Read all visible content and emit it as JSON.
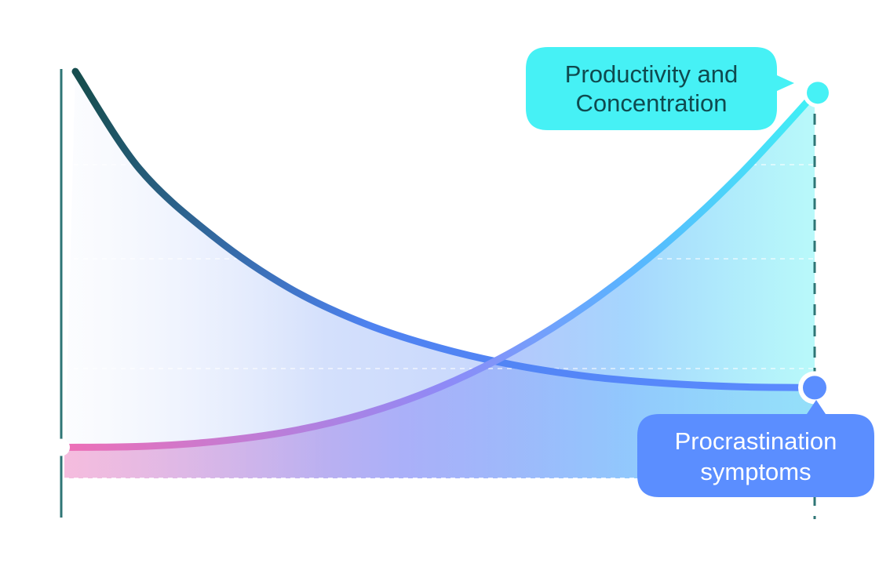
{
  "chart_data": {
    "type": "line",
    "title": "",
    "xlabel": "",
    "ylabel": "",
    "xlim": [
      0,
      100
    ],
    "ylim": [
      0,
      100
    ],
    "grid": "horizontal dashed",
    "series": [
      {
        "name": "Productivity and Concentration",
        "label_lines": [
          "Productivity and",
          "Concentration"
        ],
        "x": [
          0,
          10,
          20,
          30,
          40,
          50,
          60,
          70,
          80,
          90,
          100
        ],
        "y": [
          7,
          7.2,
          8.3,
          10.6,
          14.6,
          20.6,
          28.9,
          39.6,
          52.8,
          68.6,
          87
        ],
        "color_start": "#ee6fb6",
        "color_mid": "#5b8eff",
        "color_end": "#40f1f5",
        "end_marker_color": "#46f1f5",
        "label_bg": "#46f1f5",
        "label_color": "#0f4a4f"
      },
      {
        "name": "Procrastination symptoms",
        "label_lines": [
          "Procrastination",
          "symptoms"
        ],
        "x": [
          0,
          10,
          20,
          30,
          40,
          50,
          60,
          70,
          80,
          90,
          100
        ],
        "y": [
          92,
          70,
          54.5,
          43,
          35,
          29.5,
          25.6,
          23,
          21.5,
          20.7,
          20.5
        ],
        "color_start": "#174e4f",
        "color_end": "#5b8bff",
        "end_marker_color": "#5b8eff",
        "label_bg": "#5b8eff",
        "label_color": "#ffffff"
      }
    ],
    "baseline_y": 0
  }
}
